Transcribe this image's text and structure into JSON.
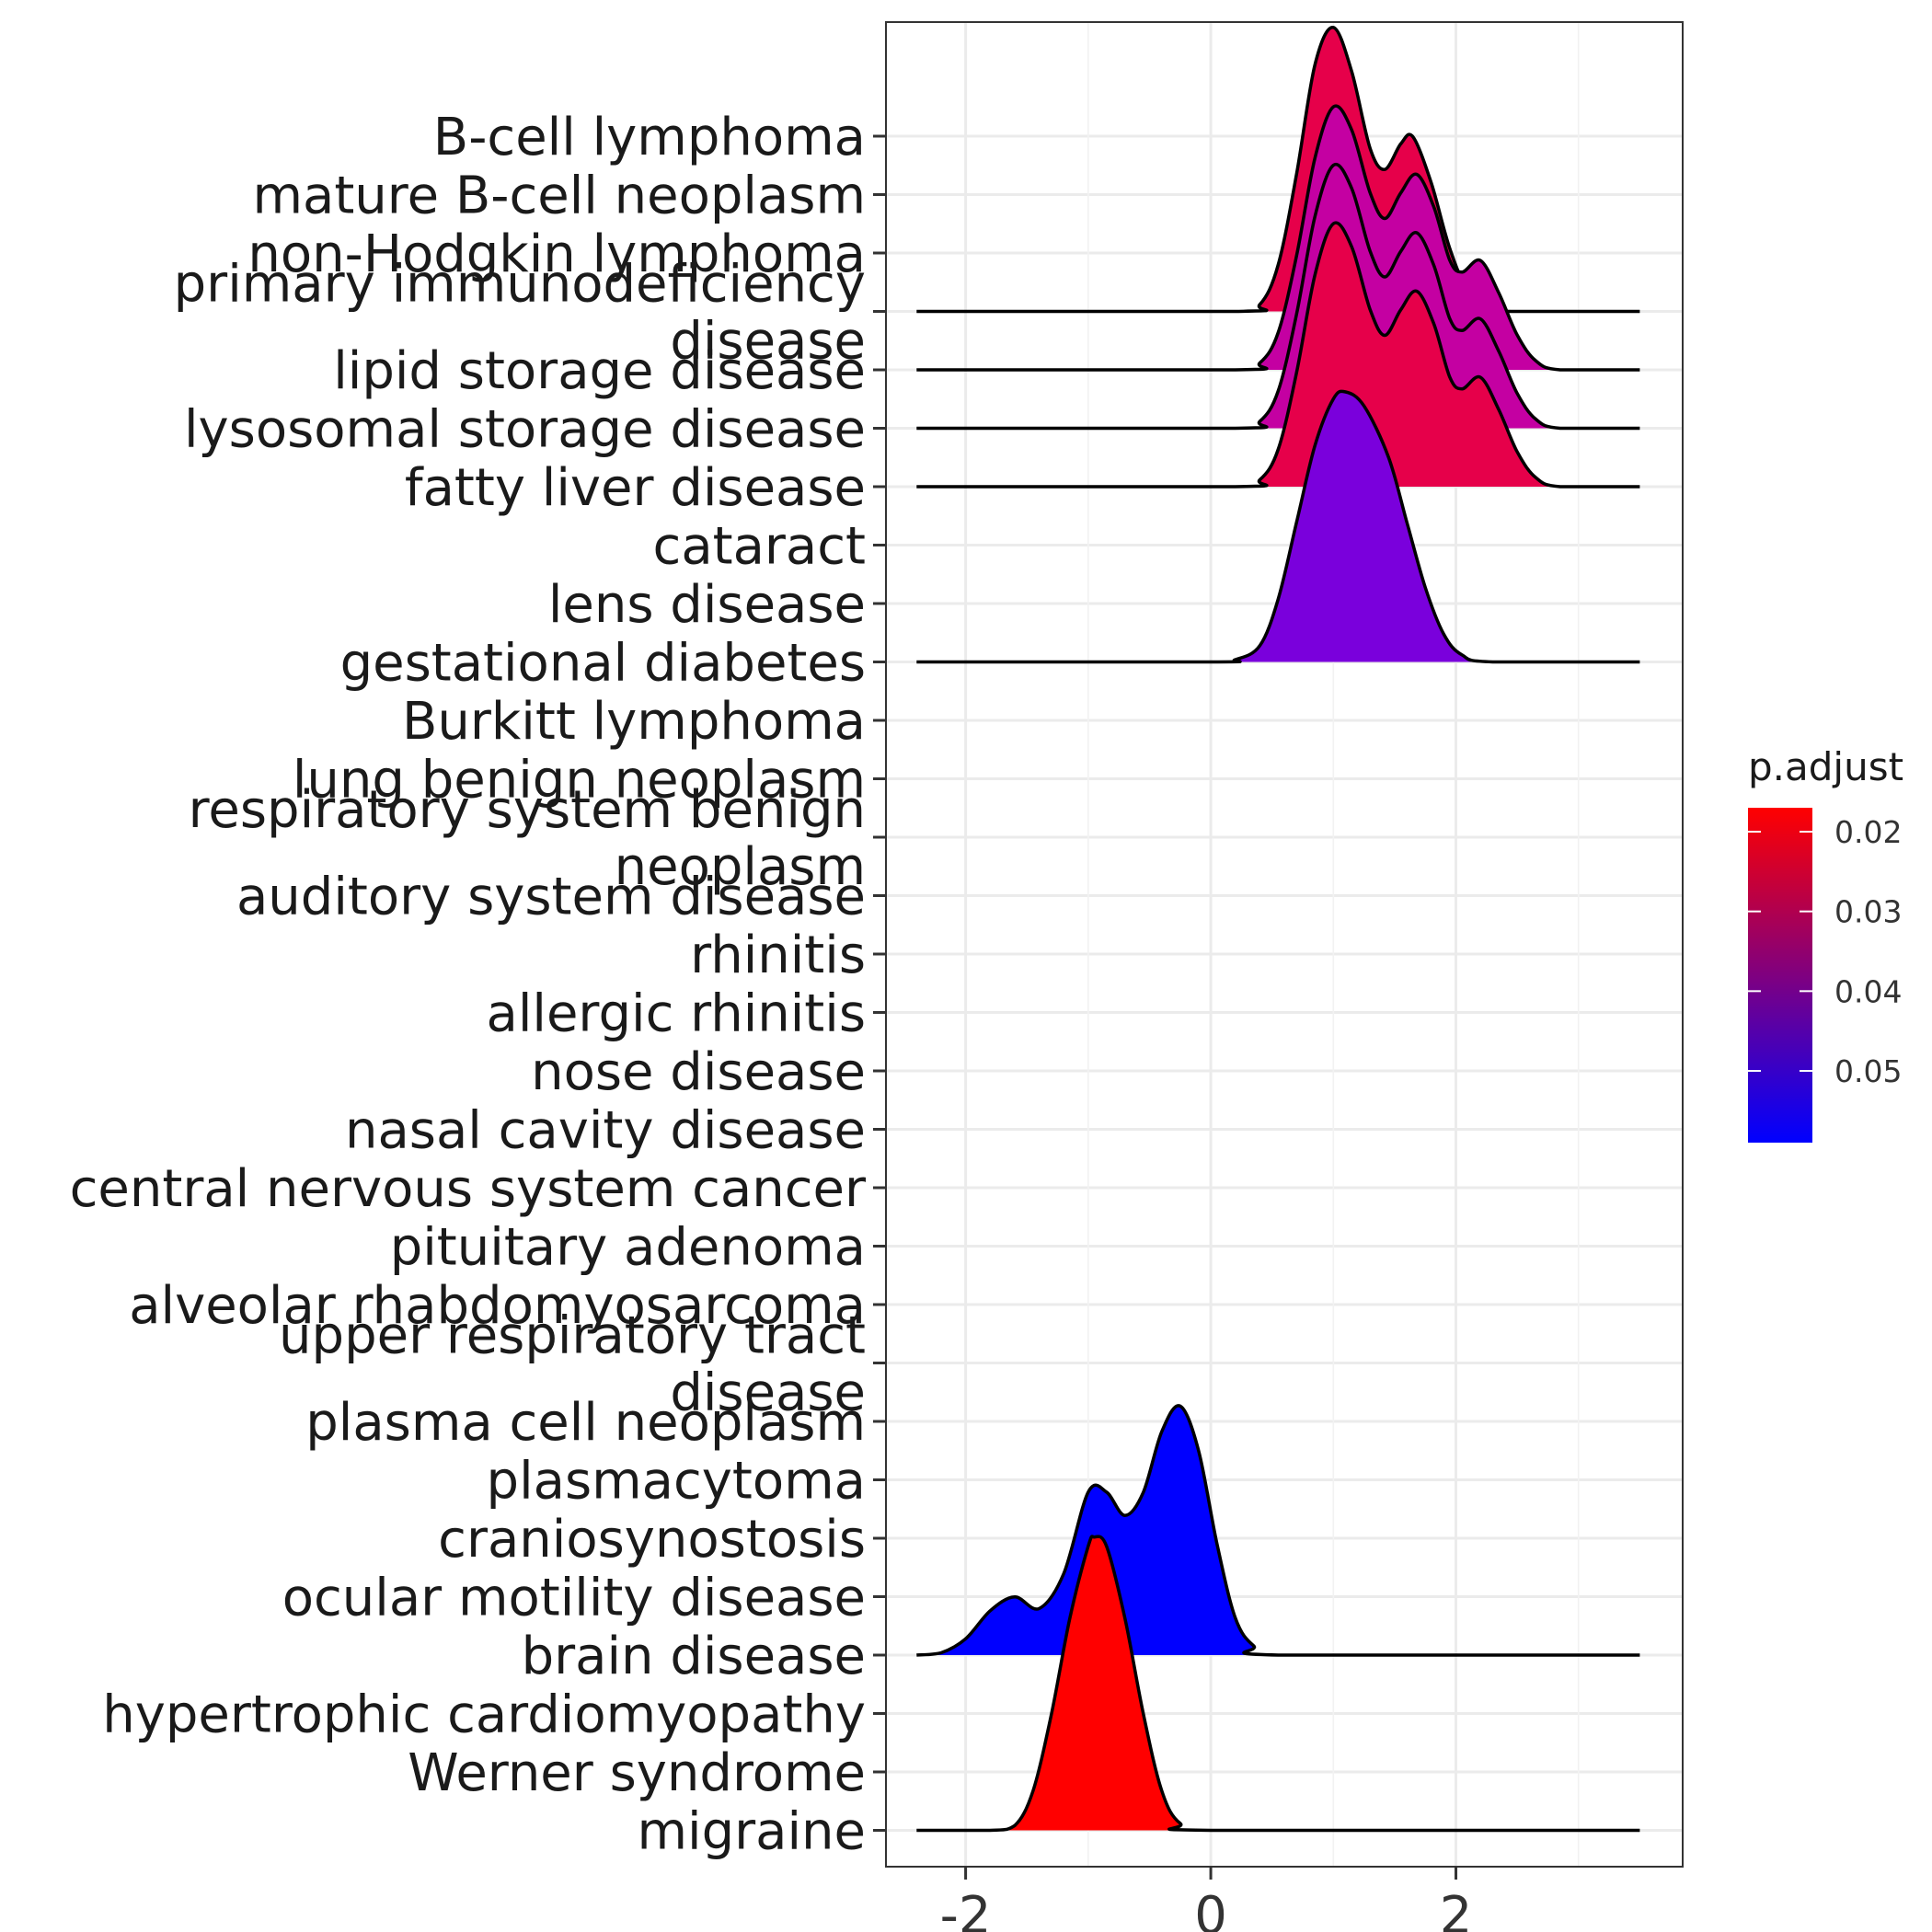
{
  "chart_data": {
    "type": "ridgeline",
    "title": "",
    "xlabel": "",
    "ylabel": "",
    "xlim": [
      -2.65,
      3.85
    ],
    "x_ticks": [
      -2,
      0,
      2
    ],
    "x_tick_labels": [
      "-2",
      "0",
      "2"
    ],
    "grid": true,
    "categories": [
      "migraine",
      "Werner syndrome",
      "hypertrophic cardiomyopathy",
      "brain disease",
      "ocular motility disease",
      "craniosynostosis",
      "plasmacytoma",
      "plasma cell neoplasm",
      "upper respiratory tract\ndisease",
      "alveolar rhabdomyosarcoma",
      "pituitary adenoma",
      "central nervous system cancer",
      "nasal cavity disease",
      "nose disease",
      "allergic rhinitis",
      "rhinitis",
      "auditory system disease",
      "respiratory system benign\nneoplasm",
      "lung benign neoplasm",
      "Burkitt lymphoma",
      "gestational diabetes",
      "lens disease",
      "cataract",
      "fatty liver disease",
      "lysosomal storage disease",
      "lipid storage disease",
      "primary immunodeficiency\ndisease",
      "non-Hodgkin lymphoma",
      "mature B-cell neoplasm",
      "B-cell lymphoma"
    ],
    "ridges": [
      {
        "category": "migraine",
        "p_adjust": 0.018,
        "color": "#ff0000",
        "density": [
          {
            "x": -2.4,
            "y": 0.0
          },
          {
            "x": -1.8,
            "y": 0.0
          },
          {
            "x": -1.6,
            "y": 0.02
          },
          {
            "x": -1.45,
            "y": 0.17
          },
          {
            "x": -1.3,
            "y": 0.5
          },
          {
            "x": -1.15,
            "y": 0.91
          },
          {
            "x": -1.0,
            "y": 1.22
          },
          {
            "x": -0.95,
            "y": 1.26
          },
          {
            "x": -0.85,
            "y": 1.22
          },
          {
            "x": -0.7,
            "y": 0.91
          },
          {
            "x": -0.55,
            "y": 0.5
          },
          {
            "x": -0.4,
            "y": 0.17
          },
          {
            "x": -0.25,
            "y": 0.03
          },
          {
            "x": 0.0,
            "y": 0.0
          },
          {
            "x": 3.5,
            "y": 0.0
          }
        ]
      },
      {
        "category": "brain disease",
        "p_adjust": 0.058,
        "color": "#0000ff",
        "density": [
          {
            "x": -2.4,
            "y": 0.0
          },
          {
            "x": -2.2,
            "y": 0.01
          },
          {
            "x": -2.0,
            "y": 0.07
          },
          {
            "x": -1.8,
            "y": 0.19
          },
          {
            "x": -1.6,
            "y": 0.25
          },
          {
            "x": -1.4,
            "y": 0.2
          },
          {
            "x": -1.2,
            "y": 0.35
          },
          {
            "x": -1.0,
            "y": 0.7
          },
          {
            "x": -0.85,
            "y": 0.7
          },
          {
            "x": -0.7,
            "y": 0.6
          },
          {
            "x": -0.55,
            "y": 0.7
          },
          {
            "x": -0.4,
            "y": 0.96
          },
          {
            "x": -0.25,
            "y": 1.07
          },
          {
            "x": -0.1,
            "y": 0.88
          },
          {
            "x": 0.05,
            "y": 0.48
          },
          {
            "x": 0.2,
            "y": 0.16
          },
          {
            "x": 0.35,
            "y": 0.04
          },
          {
            "x": 0.55,
            "y": 0.0
          },
          {
            "x": 3.5,
            "y": 0.0
          }
        ]
      },
      {
        "category": "gestational diabetes",
        "p_adjust": 0.052,
        "color": "#7a00dc",
        "density": [
          {
            "x": -2.4,
            "y": 0.0
          },
          {
            "x": 0.0,
            "y": 0.0
          },
          {
            "x": 0.2,
            "y": 0.01
          },
          {
            "x": 0.4,
            "y": 0.07
          },
          {
            "x": 0.55,
            "y": 0.27
          },
          {
            "x": 0.7,
            "y": 0.6
          },
          {
            "x": 0.85,
            "y": 0.93
          },
          {
            "x": 1.0,
            "y": 1.13
          },
          {
            "x": 1.1,
            "y": 1.16
          },
          {
            "x": 1.25,
            "y": 1.1
          },
          {
            "x": 1.45,
            "y": 0.88
          },
          {
            "x": 1.6,
            "y": 0.6
          },
          {
            "x": 1.75,
            "y": 0.32
          },
          {
            "x": 1.9,
            "y": 0.12
          },
          {
            "x": 2.05,
            "y": 0.03
          },
          {
            "x": 2.3,
            "y": 0.0
          },
          {
            "x": 3.5,
            "y": 0.0
          }
        ]
      },
      {
        "category": "fatty liver disease",
        "p_adjust": 0.028,
        "color": "#e6004a",
        "density": [
          {
            "x": -2.4,
            "y": 0.0
          },
          {
            "x": 0.2,
            "y": 0.0
          },
          {
            "x": 0.4,
            "y": 0.03
          },
          {
            "x": 0.55,
            "y": 0.16
          },
          {
            "x": 0.7,
            "y": 0.49
          },
          {
            "x": 0.85,
            "y": 0.91
          },
          {
            "x": 1.0,
            "y": 1.13
          },
          {
            "x": 1.15,
            "y": 1.03
          },
          {
            "x": 1.3,
            "y": 0.76
          },
          {
            "x": 1.42,
            "y": 0.65
          },
          {
            "x": 1.55,
            "y": 0.76
          },
          {
            "x": 1.68,
            "y": 0.84
          },
          {
            "x": 1.82,
            "y": 0.7
          },
          {
            "x": 1.95,
            "y": 0.47
          },
          {
            "x": 2.05,
            "y": 0.42
          },
          {
            "x": 2.2,
            "y": 0.47
          },
          {
            "x": 2.35,
            "y": 0.33
          },
          {
            "x": 2.5,
            "y": 0.15
          },
          {
            "x": 2.65,
            "y": 0.04
          },
          {
            "x": 2.85,
            "y": 0.0
          },
          {
            "x": 3.5,
            "y": 0.0
          }
        ]
      },
      {
        "category": "lysosomal storage disease",
        "p_adjust": 0.038,
        "color": "#c400a2",
        "density": [
          {
            "x": -2.4,
            "y": 0.0
          },
          {
            "x": 0.2,
            "y": 0.0
          },
          {
            "x": 0.4,
            "y": 0.03
          },
          {
            "x": 0.55,
            "y": 0.16
          },
          {
            "x": 0.7,
            "y": 0.49
          },
          {
            "x": 0.85,
            "y": 0.91
          },
          {
            "x": 1.0,
            "y": 1.13
          },
          {
            "x": 1.15,
            "y": 1.03
          },
          {
            "x": 1.3,
            "y": 0.76
          },
          {
            "x": 1.42,
            "y": 0.65
          },
          {
            "x": 1.55,
            "y": 0.76
          },
          {
            "x": 1.68,
            "y": 0.84
          },
          {
            "x": 1.82,
            "y": 0.7
          },
          {
            "x": 1.95,
            "y": 0.47
          },
          {
            "x": 2.05,
            "y": 0.42
          },
          {
            "x": 2.2,
            "y": 0.47
          },
          {
            "x": 2.35,
            "y": 0.33
          },
          {
            "x": 2.5,
            "y": 0.15
          },
          {
            "x": 2.65,
            "y": 0.04
          },
          {
            "x": 2.85,
            "y": 0.0
          },
          {
            "x": 3.5,
            "y": 0.0
          }
        ]
      },
      {
        "category": "lipid storage disease",
        "p_adjust": 0.038,
        "color": "#c400a2",
        "density": [
          {
            "x": -2.4,
            "y": 0.0
          },
          {
            "x": 0.2,
            "y": 0.0
          },
          {
            "x": 0.4,
            "y": 0.03
          },
          {
            "x": 0.55,
            "y": 0.16
          },
          {
            "x": 0.7,
            "y": 0.49
          },
          {
            "x": 0.85,
            "y": 0.91
          },
          {
            "x": 1.0,
            "y": 1.13
          },
          {
            "x": 1.15,
            "y": 1.03
          },
          {
            "x": 1.3,
            "y": 0.76
          },
          {
            "x": 1.42,
            "y": 0.65
          },
          {
            "x": 1.55,
            "y": 0.76
          },
          {
            "x": 1.68,
            "y": 0.84
          },
          {
            "x": 1.82,
            "y": 0.7
          },
          {
            "x": 1.95,
            "y": 0.47
          },
          {
            "x": 2.05,
            "y": 0.42
          },
          {
            "x": 2.2,
            "y": 0.47
          },
          {
            "x": 2.35,
            "y": 0.33
          },
          {
            "x": 2.5,
            "y": 0.15
          },
          {
            "x": 2.65,
            "y": 0.04
          },
          {
            "x": 2.85,
            "y": 0.0
          },
          {
            "x": 3.5,
            "y": 0.0
          }
        ]
      },
      {
        "category": "primary immunodeficiency\ndisease",
        "p_adjust": 0.028,
        "color": "#e6004a",
        "density": [
          {
            "x": -2.4,
            "y": 0.0
          },
          {
            "x": 0.2,
            "y": 0.0
          },
          {
            "x": 0.4,
            "y": 0.03
          },
          {
            "x": 0.55,
            "y": 0.2
          },
          {
            "x": 0.7,
            "y": 0.59
          },
          {
            "x": 0.85,
            "y": 1.06
          },
          {
            "x": 1.0,
            "y": 1.22
          },
          {
            "x": 1.15,
            "y": 1.03
          },
          {
            "x": 1.3,
            "y": 0.7
          },
          {
            "x": 1.42,
            "y": 0.61
          },
          {
            "x": 1.55,
            "y": 0.72
          },
          {
            "x": 1.65,
            "y": 0.75
          },
          {
            "x": 1.8,
            "y": 0.55
          },
          {
            "x": 1.95,
            "y": 0.27
          },
          {
            "x": 2.1,
            "y": 0.09
          },
          {
            "x": 2.3,
            "y": 0.01
          },
          {
            "x": 2.45,
            "y": 0.0
          },
          {
            "x": 3.5,
            "y": 0.0
          }
        ]
      }
    ],
    "legend": {
      "title": "p.adjust",
      "position": "right",
      "type": "colorbar",
      "range": [
        0.017,
        0.059
      ],
      "ticks": [
        0.02,
        0.03,
        0.04,
        0.05
      ],
      "tick_labels": [
        "0.02",
        "0.03",
        "0.04",
        "0.05"
      ],
      "low_color": "#ff0000",
      "high_color": "#0000ff"
    }
  }
}
